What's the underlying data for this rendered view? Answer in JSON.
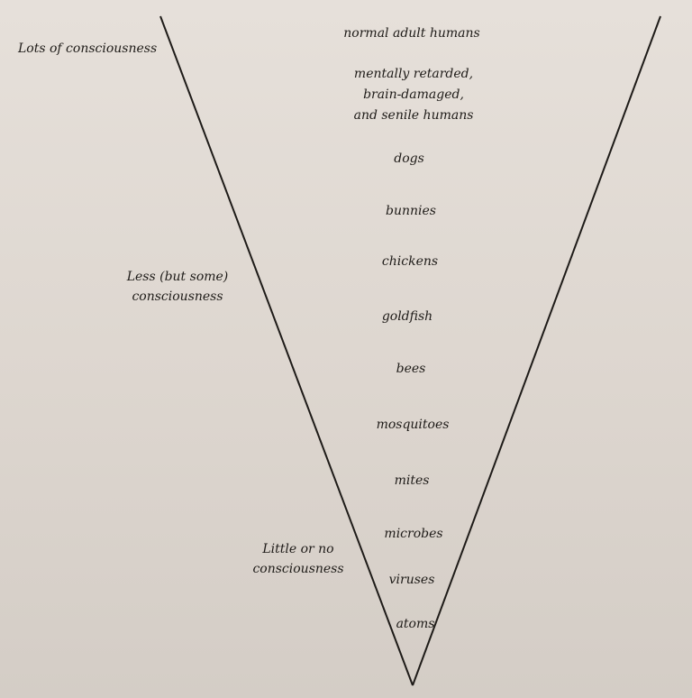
{
  "levels": [
    "normal adult humans",
    "mentally retarded,",
    "brain-damaged,",
    "and senile humans",
    "dogs",
    "bunnies",
    "chickens",
    "goldfish",
    "bees",
    "mosquitoes",
    "mites",
    "microbes",
    "viruses",
    "atoms"
  ],
  "scale": {
    "top": "Lots of consciousness",
    "middle_line1": "Less (but some)",
    "middle_line2": "consciousness",
    "bottom_line1": "Little or no",
    "bottom_line2": "consciousness"
  },
  "colors": {
    "line": "#1e1b18"
  }
}
